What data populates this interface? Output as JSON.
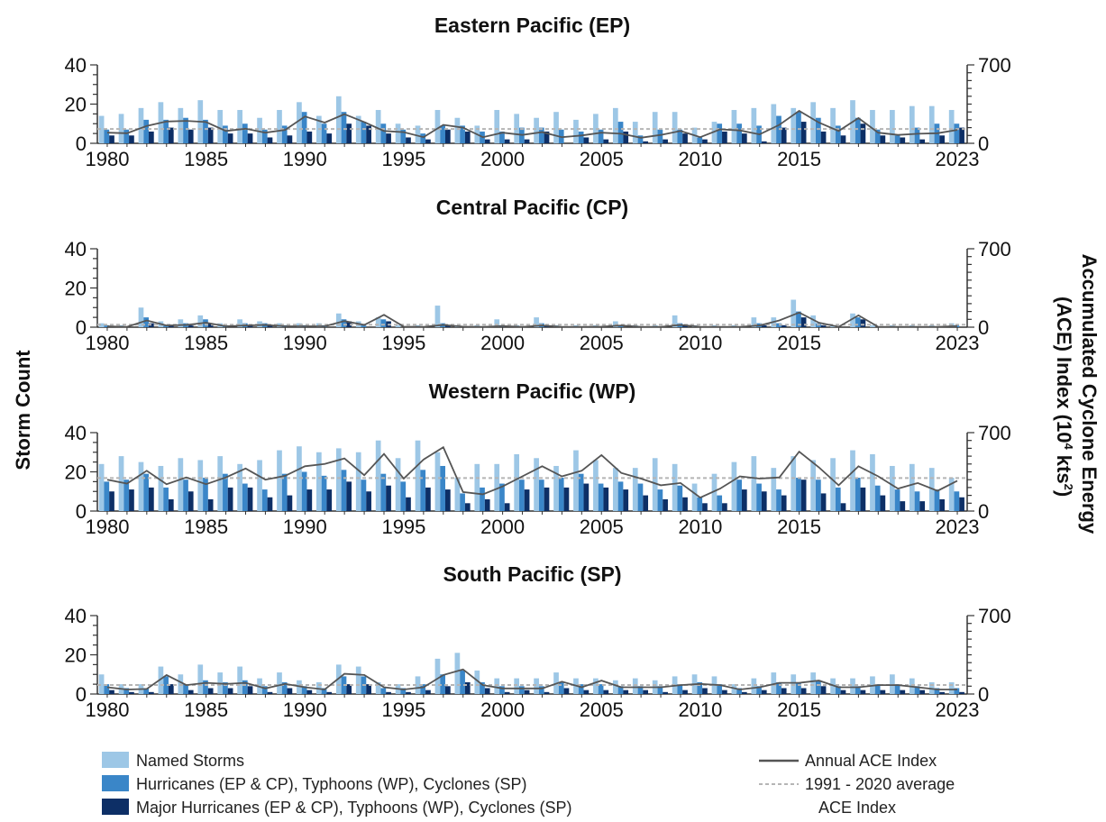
{
  "figure": {
    "ylabel_left": "Storm Count",
    "ylabel_right_line1": "Accumulated Cyclone Energy",
    "ylabel_right_line2": "(ACE) Index (10",
    "ylabel_right_sup": "4",
    "ylabel_right_line2_end": " kts",
    "ylabel_right_sup2": "2",
    "ylabel_right_close": ")"
  },
  "legend": {
    "named": "Named Storms",
    "hurricanes": "Hurricanes (EP & CP), Typhoons (WP), Cyclones (SP)",
    "major": "Major Hurricanes (EP & CP), Typhoons (WP), Cyclones (SP)",
    "ace": "Annual ACE Index",
    "avg_line1": "1991 - 2020 average",
    "avg_line2": "ACE Index"
  },
  "colors": {
    "named": "#9dc7e6",
    "hurricanes": "#3a86c8",
    "major": "#0d2f66",
    "ace": "#555555",
    "avg": "#b5b5b5"
  },
  "chart_data": [
    {
      "type": "bar",
      "title": "Eastern Pacific (EP)",
      "x_ticks": [
        "1980",
        "1985",
        "1990",
        "1995",
        "2000",
        "2005",
        "2010",
        "2015",
        "2023"
      ],
      "y_ticks": [
        "0",
        "20",
        "40"
      ],
      "y2_ticks": [
        "0",
        "700"
      ],
      "ylim": [
        0,
        40
      ],
      "y2lim": [
        0,
        700
      ],
      "years": [
        1980,
        1981,
        1982,
        1983,
        1984,
        1985,
        1986,
        1987,
        1988,
        1989,
        1990,
        1991,
        1992,
        1993,
        1994,
        1995,
        1996,
        1997,
        1998,
        1999,
        2000,
        2001,
        2002,
        2003,
        2004,
        2005,
        2006,
        2007,
        2008,
        2009,
        2010,
        2011,
        2012,
        2013,
        2014,
        2015,
        2016,
        2017,
        2018,
        2019,
        2020,
        2021,
        2022,
        2023
      ],
      "series": [
        {
          "name": "Named Storms",
          "values": [
            14,
            15,
            18,
            21,
            18,
            22,
            17,
            17,
            13,
            17,
            21,
            14,
            24,
            14,
            17,
            10,
            9,
            17,
            13,
            9,
            17,
            15,
            13,
            16,
            12,
            15,
            18,
            11,
            16,
            16,
            8,
            11,
            17,
            18,
            20,
            18,
            21,
            18,
            22,
            17,
            17,
            19,
            19,
            17
          ]
        },
        {
          "name": "Hurricanes (EP & CP), Typhoons (WP), Cyclones (SP)",
          "values": [
            7,
            7,
            12,
            12,
            13,
            12,
            9,
            10,
            7,
            9,
            16,
            10,
            16,
            11,
            10,
            7,
            5,
            9,
            9,
            6,
            6,
            8,
            8,
            7,
            6,
            7,
            11,
            4,
            7,
            7,
            3,
            10,
            10,
            9,
            14,
            16,
            13,
            9,
            13,
            7,
            4,
            8,
            10,
            10
          ]
        },
        {
          "name": "Major Hurricanes (EP & CP), Typhoons (WP), Cyclones (SP)",
          "values": [
            4,
            4,
            6,
            8,
            7,
            8,
            5,
            5,
            3,
            4,
            6,
            5,
            10,
            9,
            5,
            3,
            2,
            7,
            6,
            2,
            2,
            2,
            6,
            0,
            3,
            2,
            6,
            1,
            2,
            5,
            2,
            6,
            5,
            1,
            8,
            11,
            6,
            4,
            10,
            4,
            3,
            2,
            4,
            8
          ]
        },
        {
          "name": "Annual ACE Index",
          "axis": "y2",
          "values": [
            95,
            90,
            155,
            195,
            200,
            190,
            110,
            130,
            95,
            120,
            240,
            185,
            260,
            190,
            110,
            100,
            55,
            165,
            140,
            55,
            95,
            75,
            100,
            55,
            70,
            95,
            85,
            50,
            75,
            110,
            55,
            125,
            115,
            80,
            165,
            290,
            185,
            110,
            225,
            95,
            75,
            85,
            90,
            120
          ]
        },
        {
          "name": "1991 - 2020 average ACE Index",
          "axis": "y2",
          "values": [
            128
          ]
        }
      ]
    },
    {
      "type": "bar",
      "title": "Central Pacific (CP)",
      "x_ticks": [
        "1980",
        "1985",
        "1990",
        "1995",
        "2000",
        "2005",
        "2010",
        "2015",
        "2023"
      ],
      "y_ticks": [
        "0",
        "20",
        "40"
      ],
      "y2_ticks": [
        "0",
        "700"
      ],
      "ylim": [
        0,
        40
      ],
      "y2lim": [
        0,
        700
      ],
      "years": [
        1980,
        1981,
        1982,
        1983,
        1984,
        1985,
        1986,
        1987,
        1988,
        1989,
        1990,
        1991,
        1992,
        1993,
        1994,
        1995,
        1996,
        1997,
        1998,
        1999,
        2000,
        2001,
        2002,
        2003,
        2004,
        2005,
        2006,
        2007,
        2008,
        2009,
        2010,
        2011,
        2012,
        2013,
        2014,
        2015,
        2016,
        2017,
        2018,
        2019,
        2020,
        2021,
        2022,
        2023
      ],
      "series": [
        {
          "name": "Named Storms",
          "values": [
            2,
            1,
            10,
            3,
            4,
            6,
            2,
            4,
            3,
            2,
            2,
            2,
            7,
            3,
            5,
            1,
            1,
            11,
            1,
            1,
            4,
            1,
            5,
            1,
            1,
            1,
            3,
            1,
            1,
            6,
            1,
            1,
            1,
            5,
            5,
            14,
            6,
            1,
            7,
            1,
            1,
            1,
            1,
            2
          ]
        },
        {
          "name": "Hurricanes (EP & CP), Typhoons (WP), Cyclones (SP)",
          "values": [
            1,
            0,
            5,
            1,
            2,
            4,
            1,
            2,
            2,
            1,
            1,
            1,
            4,
            1,
            4,
            0,
            0,
            2,
            0,
            0,
            1,
            0,
            2,
            0,
            0,
            0,
            1,
            0,
            0,
            2,
            0,
            0,
            0,
            2,
            2,
            8,
            2,
            0,
            5,
            0,
            0,
            0,
            0,
            1
          ]
        },
        {
          "name": "Major Hurricanes (EP & CP), Typhoons (WP), Cyclones (SP)",
          "values": [
            0,
            0,
            2,
            1,
            1,
            2,
            0,
            1,
            1,
            0,
            0,
            0,
            3,
            0,
            3,
            0,
            0,
            1,
            0,
            0,
            0,
            0,
            1,
            0,
            0,
            0,
            0,
            0,
            0,
            1,
            0,
            0,
            0,
            1,
            1,
            5,
            1,
            0,
            4,
            0,
            0,
            0,
            0,
            0
          ]
        },
        {
          "name": "Annual ACE Index",
          "axis": "y2",
          "values": [
            8,
            3,
            60,
            15,
            20,
            40,
            8,
            15,
            20,
            8,
            8,
            8,
            55,
            20,
            110,
            5,
            3,
            20,
            5,
            3,
            10,
            3,
            15,
            3,
            3,
            5,
            15,
            3,
            3,
            20,
            3,
            3,
            3,
            15,
            60,
            130,
            40,
            3,
            105,
            3,
            3,
            3,
            3,
            10
          ]
        },
        {
          "name": "1991 - 2020 average ACE Index",
          "axis": "y2",
          "values": [
            22
          ]
        }
      ]
    },
    {
      "type": "bar",
      "title": "Western Pacific (WP)",
      "x_ticks": [
        "1980",
        "1985",
        "1990",
        "1995",
        "2000",
        "2005",
        "2010",
        "2015",
        "2023"
      ],
      "y_ticks": [
        "0",
        "20",
        "40"
      ],
      "y2_ticks": [
        "0",
        "700"
      ],
      "ylim": [
        0,
        40
      ],
      "y2lim": [
        0,
        700
      ],
      "years": [
        1980,
        1981,
        1982,
        1983,
        1984,
        1985,
        1986,
        1987,
        1988,
        1989,
        1990,
        1991,
        1992,
        1993,
        1994,
        1995,
        1996,
        1997,
        1998,
        1999,
        2000,
        2001,
        2002,
        2003,
        2004,
        2005,
        2006,
        2007,
        2008,
        2009,
        2010,
        2011,
        2012,
        2013,
        2014,
        2015,
        2016,
        2017,
        2018,
        2019,
        2020,
        2021,
        2022,
        2023
      ],
      "series": [
        {
          "name": "Named Storms",
          "values": [
            24,
            28,
            25,
            23,
            27,
            26,
            28,
            24,
            26,
            31,
            33,
            30,
            32,
            30,
            36,
            27,
            36,
            30,
            17,
            24,
            24,
            29,
            27,
            23,
            31,
            26,
            22,
            22,
            27,
            24,
            14,
            19,
            25,
            28,
            22,
            28,
            26,
            27,
            31,
            29,
            23,
            24,
            22,
            17
          ]
        },
        {
          "name": "Hurricanes (EP & CP), Typhoons (WP), Cyclones (SP)",
          "values": [
            15,
            16,
            19,
            12,
            16,
            17,
            19,
            14,
            11,
            19,
            20,
            18,
            21,
            16,
            19,
            15,
            21,
            23,
            9,
            12,
            14,
            16,
            16,
            17,
            19,
            14,
            15,
            14,
            11,
            13,
            7,
            8,
            16,
            14,
            11,
            17,
            16,
            12,
            17,
            13,
            11,
            10,
            11,
            10
          ]
        },
        {
          "name": "Major Hurricanes (EP & CP), Typhoons (WP), Cyclones (SP)",
          "values": [
            10,
            11,
            12,
            6,
            10,
            6,
            12,
            12,
            7,
            8,
            11,
            11,
            15,
            10,
            13,
            7,
            12,
            11,
            4,
            6,
            4,
            11,
            12,
            12,
            14,
            12,
            11,
            8,
            6,
            7,
            4,
            4,
            11,
            10,
            8,
            16,
            9,
            4,
            12,
            8,
            5,
            5,
            6,
            7
          ]
        },
        {
          "name": "Annual ACE Index",
          "axis": "y2",
          "values": [
            280,
            245,
            360,
            240,
            300,
            240,
            300,
            380,
            280,
            315,
            400,
            420,
            470,
            320,
            510,
            290,
            460,
            570,
            170,
            150,
            220,
            310,
            400,
            310,
            360,
            500,
            340,
            290,
            230,
            250,
            120,
            200,
            310,
            290,
            300,
            530,
            390,
            230,
            400,
            310,
            200,
            250,
            180,
            270
          ]
        },
        {
          "name": "1991 - 2020 average ACE Index",
          "axis": "y2",
          "values": [
            295
          ]
        }
      ]
    },
    {
      "type": "bar",
      "title": "South Pacific (SP)",
      "x_ticks": [
        "1980",
        "1985",
        "1990",
        "1995",
        "2000",
        "2005",
        "2010",
        "2015",
        "2023"
      ],
      "y_ticks": [
        "0",
        "20",
        "40"
      ],
      "y2_ticks": [
        "0",
        "700"
      ],
      "ylim": [
        0,
        40
      ],
      "y2lim": [
        0,
        700
      ],
      "years": [
        1980,
        1981,
        1982,
        1983,
        1984,
        1985,
        1986,
        1987,
        1988,
        1989,
        1990,
        1991,
        1992,
        1993,
        1994,
        1995,
        1996,
        1997,
        1998,
        1999,
        2000,
        2001,
        2002,
        2003,
        2004,
        2005,
        2006,
        2007,
        2008,
        2009,
        2010,
        2011,
        2012,
        2013,
        2014,
        2015,
        2016,
        2017,
        2018,
        2019,
        2020,
        2021,
        2022,
        2023
      ],
      "series": [
        {
          "name": "Named Storms",
          "values": [
            10,
            5,
            5,
            14,
            10,
            15,
            11,
            14,
            8,
            11,
            7,
            6,
            15,
            14,
            6,
            5,
            9,
            18,
            21,
            12,
            8,
            8,
            8,
            11,
            8,
            8,
            7,
            8,
            7,
            9,
            10,
            9,
            5,
            8,
            11,
            10,
            11,
            8,
            8,
            9,
            10,
            8,
            6,
            6
          ]
        },
        {
          "name": "Hurricanes (EP & CP), Typhoons (WP), Cyclones (SP)",
          "values": [
            5,
            3,
            3,
            9,
            5,
            7,
            6,
            7,
            4,
            6,
            4,
            3,
            9,
            9,
            3,
            3,
            5,
            10,
            12,
            6,
            4,
            4,
            4,
            6,
            5,
            5,
            4,
            4,
            4,
            5,
            6,
            5,
            3,
            4,
            6,
            6,
            7,
            4,
            4,
            5,
            5,
            4,
            3,
            3
          ]
        },
        {
          "name": "Major Hurricanes (EP & CP), Typhoons (WP), Cyclones (SP)",
          "values": [
            2,
            1,
            1,
            5,
            2,
            3,
            3,
            4,
            1,
            3,
            2,
            1,
            5,
            5,
            1,
            1,
            2,
            4,
            6,
            3,
            1,
            2,
            1,
            3,
            2,
            2,
            2,
            2,
            1,
            2,
            3,
            2,
            1,
            2,
            3,
            3,
            4,
            2,
            2,
            2,
            2,
            2,
            1,
            1
          ]
        },
        {
          "name": "Annual ACE Index",
          "axis": "y2",
          "values": [
            60,
            40,
            45,
            170,
            80,
            100,
            90,
            100,
            50,
            90,
            60,
            40,
            180,
            170,
            60,
            40,
            60,
            170,
            220,
            80,
            50,
            50,
            50,
            110,
            60,
            120,
            60,
            60,
            60,
            80,
            90,
            80,
            40,
            60,
            100,
            100,
            120,
            60,
            60,
            80,
            80,
            60,
            40,
            40
          ]
        },
        {
          "name": "1991 - 2020 average ACE Index",
          "axis": "y2",
          "values": [
            80
          ]
        }
      ]
    }
  ]
}
